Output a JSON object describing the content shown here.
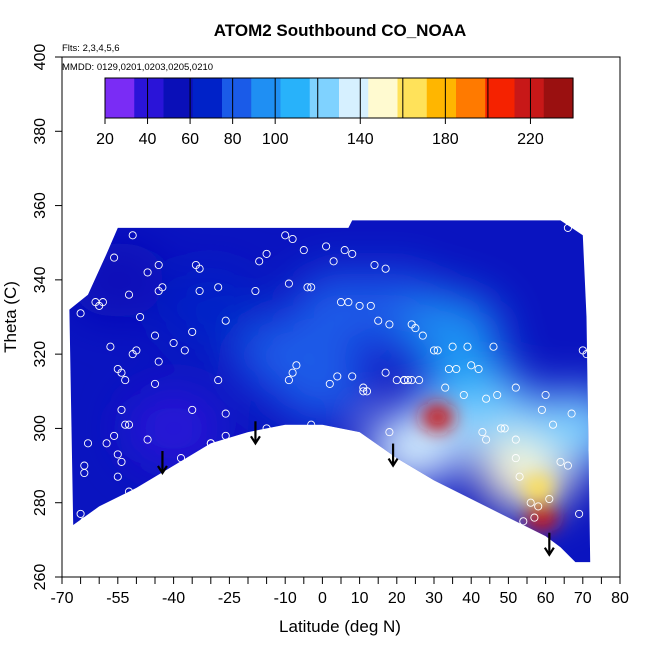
{
  "chart_data": {
    "type": "heatmap",
    "title": "ATOM2 Southbound CO_NOAA",
    "flights_note": "Flts: 2,3,4,5,6",
    "dates_note": "MMDD: 0129,0201,0203,0205,0210",
    "xlabel": "Latitude (deg N)",
    "ylabel": "Theta (C)",
    "xlim": [
      -70,
      80
    ],
    "ylim": [
      260,
      400
    ],
    "x_ticks": [
      -70,
      -55,
      -40,
      -25,
      -10,
      0,
      10,
      20,
      30,
      40,
      50,
      60,
      70,
      80
    ],
    "y_ticks": [
      260,
      280,
      300,
      320,
      340,
      360,
      380,
      400
    ],
    "colorbar": {
      "range": [
        20,
        240
      ],
      "tick_values": [
        20,
        40,
        60,
        80,
        100,
        140,
        180,
        220
      ],
      "tick_labels": [
        "20",
        "40",
        "60",
        "80",
        "100",
        "140",
        "180",
        "220"
      ],
      "colors": [
        "#7a2cf5",
        "#2a14d8",
        "#0a0fb8",
        "#0022c8",
        "#1a5be8",
        "#1f8ff3",
        "#28b2fa",
        "#7fd2ff",
        "#d6f0ff",
        "#fffad0",
        "#ffe25a",
        "#ffb600",
        "#ff7a00",
        "#f52200",
        "#c81818",
        "#9a1010"
      ]
    },
    "surface_boundary": [
      {
        "lat": -67,
        "theta": 274
      },
      {
        "lat": -60,
        "theta": 279
      },
      {
        "lat": -50,
        "theta": 284
      },
      {
        "lat": -40,
        "theta": 290
      },
      {
        "lat": -30,
        "theta": 296
      },
      {
        "lat": -20,
        "theta": 299
      },
      {
        "lat": -10,
        "theta": 301
      },
      {
        "lat": 0,
        "theta": 301
      },
      {
        "lat": 10,
        "theta": 299
      },
      {
        "lat": 20,
        "theta": 292
      },
      {
        "lat": 30,
        "theta": 286
      },
      {
        "lat": 40,
        "theta": 281
      },
      {
        "lat": 50,
        "theta": 276
      },
      {
        "lat": 60,
        "theta": 271
      },
      {
        "lat": 64,
        "theta": 268
      },
      {
        "lat": 68,
        "theta": 264
      }
    ],
    "top_boundary": [
      {
        "lat": -68,
        "theta": 332
      },
      {
        "lat": -63,
        "theta": 336
      },
      {
        "lat": -58,
        "theta": 347
      },
      {
        "lat": -55,
        "theta": 354
      },
      {
        "lat": 7,
        "theta": 354
      },
      {
        "lat": 8,
        "theta": 356
      },
      {
        "lat": 64,
        "theta": 356
      },
      {
        "lat": 70,
        "theta": 352
      },
      {
        "lat": 71,
        "theta": 330
      },
      {
        "lat": 72,
        "theta": 264
      }
    ],
    "co_features": [
      {
        "lat": 20,
        "theta": 332,
        "value": 80
      },
      {
        "lat": -10,
        "theta": 320,
        "value": 75
      },
      {
        "lat": -30,
        "theta": 332,
        "value": 68
      },
      {
        "lat": 5,
        "theta": 332,
        "value": 78
      },
      {
        "lat": 0,
        "theta": 312,
        "value": 82
      },
      {
        "lat": 40,
        "theta": 310,
        "value": 110
      },
      {
        "lat": 50,
        "theta": 300,
        "value": 125
      },
      {
        "lat": 55,
        "theta": 288,
        "value": 145
      },
      {
        "lat": 25,
        "theta": 295,
        "value": 130
      },
      {
        "lat": 31,
        "theta": 303,
        "value": 225
      },
      {
        "lat": 59,
        "theta": 276,
        "value": 215
      },
      {
        "lat": 58,
        "theta": 284,
        "value": 170
      },
      {
        "lat": -55,
        "theta": 340,
        "value": 48
      },
      {
        "lat": -40,
        "theta": 300,
        "value": 42
      },
      {
        "lat": 35,
        "theta": 326,
        "value": 100
      },
      {
        "lat": 68,
        "theta": 300,
        "value": 120
      }
    ],
    "samples": [
      [
        -65,
        331
      ],
      [
        -61,
        334
      ],
      [
        -56,
        346
      ],
      [
        -51,
        352
      ],
      [
        -63,
        296
      ],
      [
        -64,
        290
      ],
      [
        -64,
        288
      ],
      [
        -65,
        277
      ],
      [
        -64,
        275
      ],
      [
        -57,
        322
      ],
      [
        -55,
        316
      ],
      [
        -54,
        315
      ],
      [
        -53,
        313
      ],
      [
        -51,
        320
      ],
      [
        -50,
        321
      ],
      [
        -47,
        342
      ],
      [
        -52,
        336
      ],
      [
        -49,
        330
      ],
      [
        -44,
        337
      ],
      [
        -43,
        338
      ],
      [
        -45,
        325
      ],
      [
        -44,
        318
      ],
      [
        -37,
        321
      ],
      [
        -35,
        305
      ],
      [
        -38,
        292
      ],
      [
        -47,
        297
      ],
      [
        -53,
        301
      ],
      [
        -55,
        293
      ],
      [
        -54,
        291
      ],
      [
        -55,
        287
      ],
      [
        -52,
        283
      ],
      [
        -54,
        280
      ],
      [
        -54,
        305
      ],
      [
        -52,
        301
      ],
      [
        -59,
        334
      ],
      [
        -45,
        312
      ],
      [
        -33,
        337
      ],
      [
        -33,
        343
      ],
      [
        -28,
        338
      ],
      [
        -26,
        329
      ],
      [
        -26,
        304
      ],
      [
        -26,
        298
      ],
      [
        -30,
        296
      ],
      [
        -28,
        313
      ],
      [
        -18,
        337
      ],
      [
        -17,
        345
      ],
      [
        -15,
        300
      ],
      [
        -10,
        352
      ],
      [
        -8,
        351
      ],
      [
        -9,
        339
      ],
      [
        -8,
        315
      ],
      [
        -7,
        317
      ],
      [
        -9,
        313
      ],
      [
        -5,
        348
      ],
      [
        -4,
        338
      ],
      [
        -3,
        301
      ],
      [
        1,
        349
      ],
      [
        3,
        345
      ],
      [
        2,
        312
      ],
      [
        4,
        314
      ],
      [
        6,
        348
      ],
      [
        8,
        347
      ],
      [
        5,
        334
      ],
      [
        7,
        334
      ],
      [
        8,
        314
      ],
      [
        10,
        333
      ],
      [
        11,
        311
      ],
      [
        12,
        310
      ],
      [
        14,
        344
      ],
      [
        15,
        329
      ],
      [
        17,
        343
      ],
      [
        18,
        328
      ],
      [
        17,
        315
      ],
      [
        18,
        299
      ],
      [
        20,
        313
      ],
      [
        22,
        313
      ],
      [
        24,
        328
      ],
      [
        25,
        327
      ],
      [
        24,
        313
      ],
      [
        22,
        313
      ],
      [
        27,
        325
      ],
      [
        31,
        321
      ],
      [
        33,
        311
      ],
      [
        34,
        316
      ],
      [
        36,
        316
      ],
      [
        38,
        309
      ],
      [
        39,
        322
      ],
      [
        40,
        317
      ],
      [
        42,
        316
      ],
      [
        44,
        308
      ],
      [
        43,
        299
      ],
      [
        44,
        297
      ],
      [
        46,
        322
      ],
      [
        47,
        309
      ],
      [
        48,
        300
      ],
      [
        49,
        300
      ],
      [
        52,
        311
      ],
      [
        52,
        297
      ],
      [
        52,
        292
      ],
      [
        53,
        287
      ],
      [
        54,
        275
      ],
      [
        55,
        270
      ],
      [
        56,
        280
      ],
      [
        57,
        276
      ],
      [
        58,
        279
      ],
      [
        59,
        305
      ],
      [
        60,
        309
      ],
      [
        61,
        281
      ],
      [
        62,
        301
      ],
      [
        64,
        291
      ],
      [
        66,
        290
      ],
      [
        67,
        304
      ],
      [
        70,
        321
      ],
      [
        69,
        277
      ],
      [
        22,
        313
      ],
      [
        30,
        321
      ],
      [
        26,
        313
      ],
      [
        35,
        322
      ],
      [
        -44,
        344
      ],
      [
        -60,
        333
      ],
      [
        -56,
        298
      ],
      [
        -58,
        296
      ],
      [
        -40,
        323
      ],
      [
        -15,
        347
      ],
      [
        -3,
        338
      ],
      [
        11,
        310
      ],
      [
        13,
        333
      ],
      [
        23,
        313
      ],
      [
        -34,
        344
      ],
      [
        -30,
        296
      ],
      [
        -35,
        326
      ],
      [
        66,
        354
      ],
      [
        71,
        320
      ]
    ],
    "arrows": [
      {
        "lat": -43,
        "theta": 288
      },
      {
        "lat": -18,
        "theta": 296
      },
      {
        "lat": 19,
        "theta": 290
      },
      {
        "lat": 61,
        "theta": 266
      }
    ]
  }
}
